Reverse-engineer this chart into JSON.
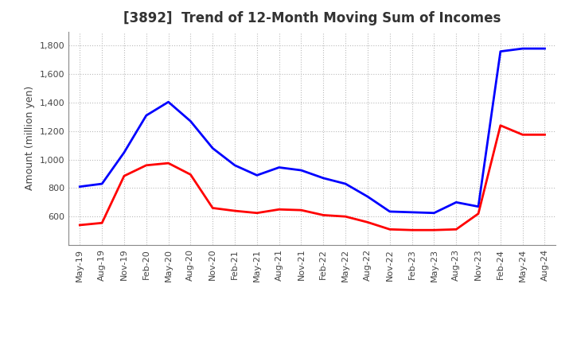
{
  "title": "[3892]  Trend of 12-Month Moving Sum of Incomes",
  "ylabel": "Amount (million yen)",
  "x_labels": [
    "May-19",
    "Aug-19",
    "Nov-19",
    "Feb-20",
    "May-20",
    "Aug-20",
    "Nov-20",
    "Feb-21",
    "May-21",
    "Aug-21",
    "Nov-21",
    "Feb-22",
    "May-22",
    "Aug-22",
    "Nov-22",
    "Feb-23",
    "May-23",
    "Aug-23",
    "Nov-23",
    "Feb-24",
    "May-24",
    "Aug-24"
  ],
  "ordinary_income": [
    810,
    830,
    1050,
    1310,
    1405,
    1270,
    1080,
    960,
    890,
    945,
    925,
    870,
    830,
    740,
    635,
    630,
    625,
    700,
    670,
    1760,
    1780,
    1780
  ],
  "net_income": [
    540,
    555,
    885,
    960,
    975,
    895,
    660,
    640,
    625,
    650,
    645,
    610,
    600,
    560,
    510,
    505,
    505,
    510,
    620,
    1240,
    1175,
    1175
  ],
  "ordinary_color": "#0000ff",
  "net_color": "#ff0000",
  "ylim_min": 400,
  "ylim_max": 1900,
  "yticks": [
    600,
    800,
    1000,
    1200,
    1400,
    1600,
    1800
  ],
  "background_color": "#ffffff",
  "grid_color": "#bbbbbb",
  "title_fontsize": 12,
  "axis_label_fontsize": 9,
  "tick_fontsize": 8
}
